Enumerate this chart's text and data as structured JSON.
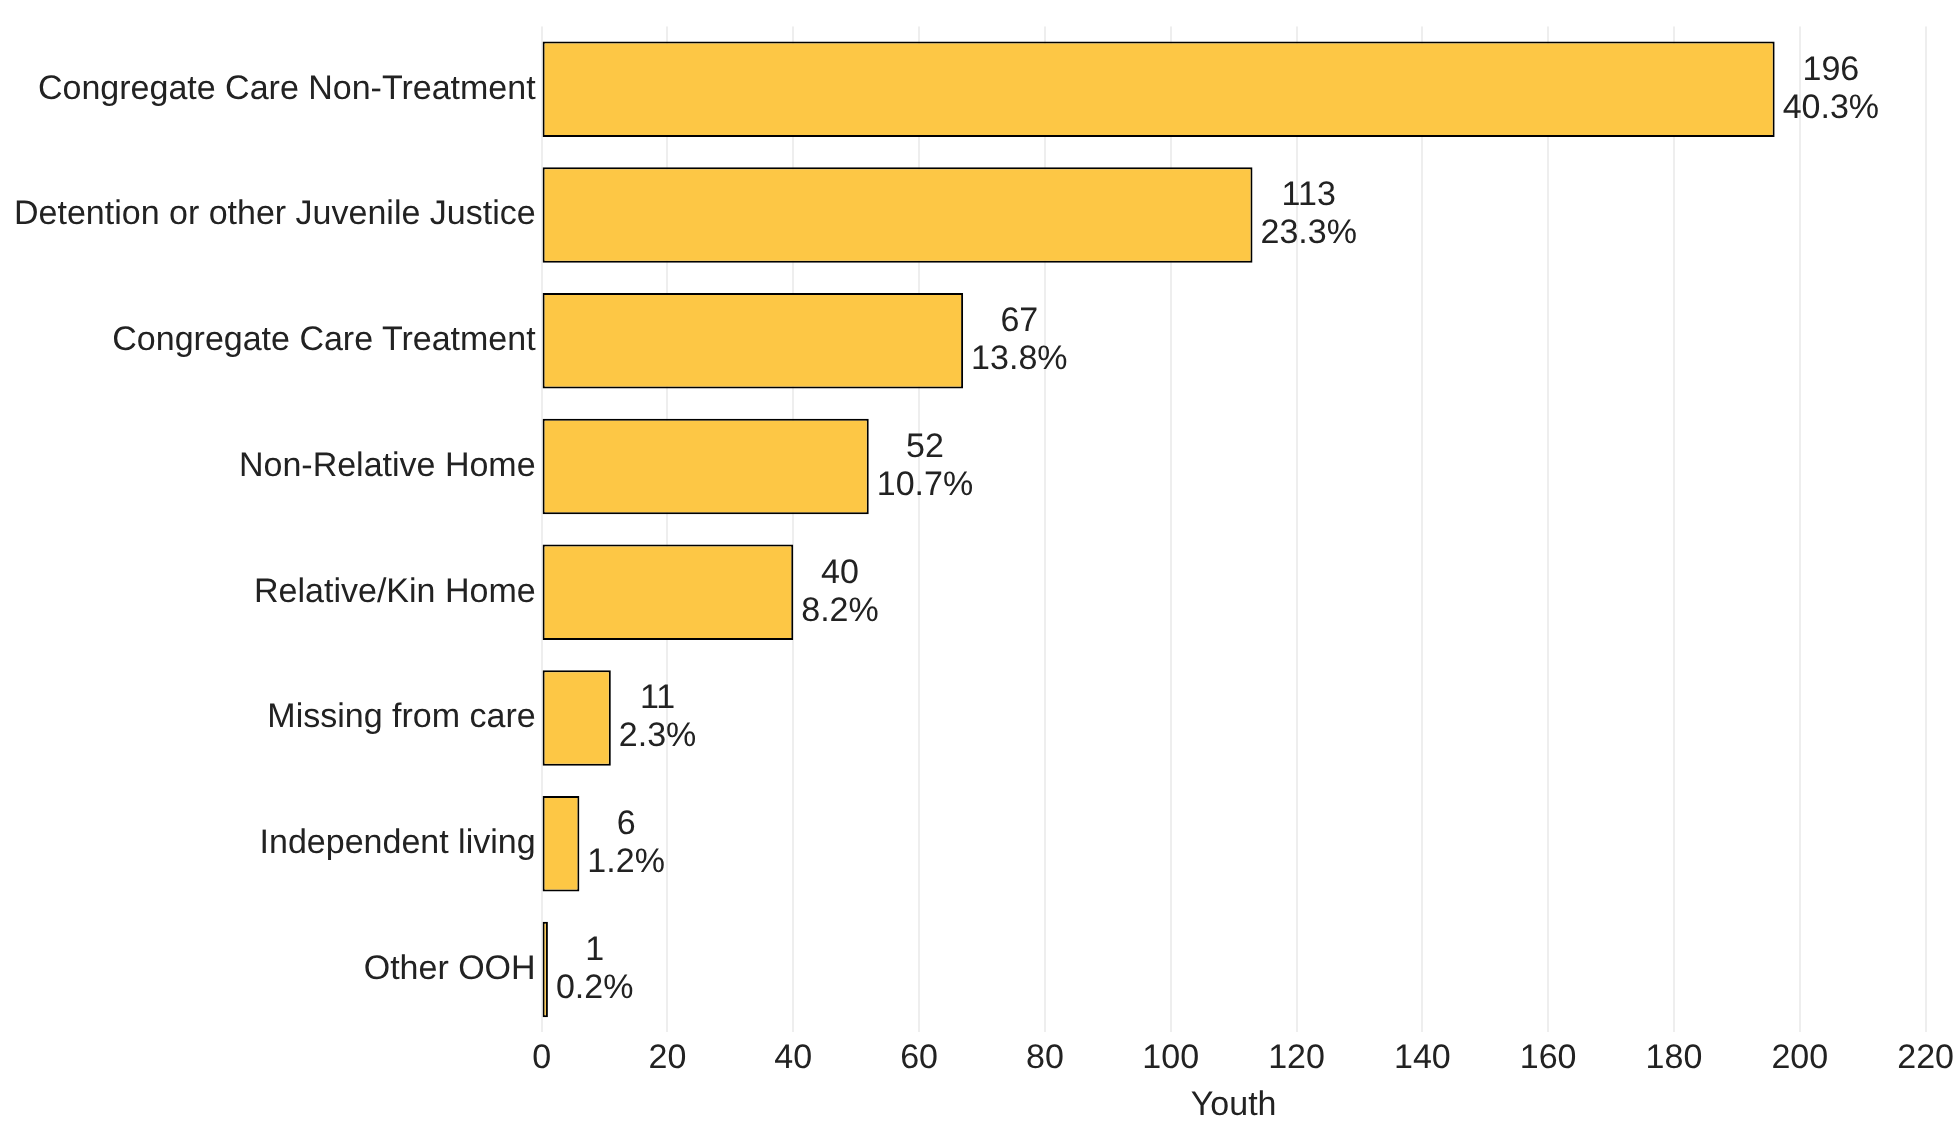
{
  "chart_data": {
    "type": "bar",
    "orientation": "horizontal",
    "xlabel": "Youth",
    "categories": [
      "Congregate Care Non-Treatment",
      "Detention or other Juvenile Justice",
      "Congregate Care Treatment",
      "Non-Relative Home",
      "Relative/Kin Home",
      "Missing from care",
      "Independent living",
      "Other OOH"
    ],
    "values": [
      196,
      113,
      67,
      52,
      40,
      11,
      6,
      1
    ],
    "value_labels": [
      "196\n40.3%",
      "113\n23.3%",
      "67\n13.8%",
      "52\n10.7%",
      "40\n8.2%",
      "11\n2.3%",
      "6\n1.2%",
      "1\n0.2%"
    ],
    "color": "#fdc745",
    "xlim": [
      0,
      220
    ],
    "xticks": [
      0,
      20,
      40,
      60,
      80,
      100,
      120,
      140,
      160,
      180,
      200,
      220
    ],
    "grid": "x",
    "legend": false
  }
}
